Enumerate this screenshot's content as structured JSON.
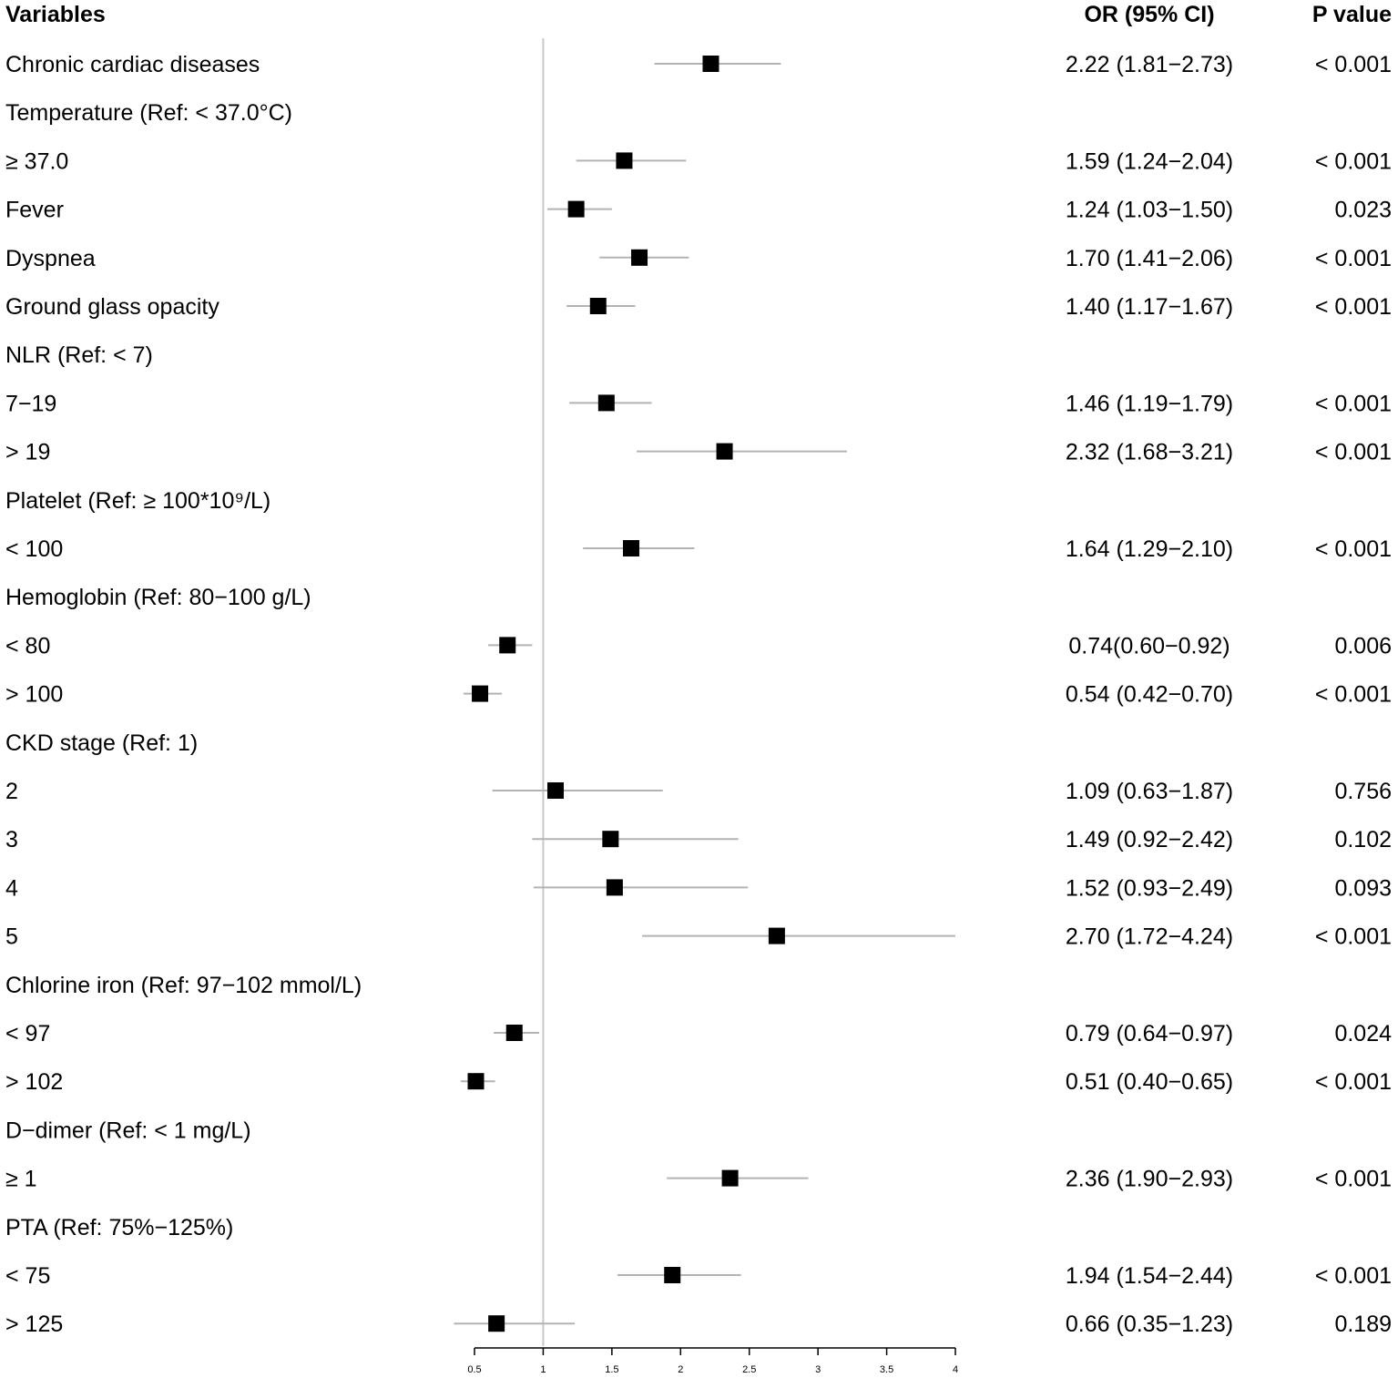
{
  "chart_data": {
    "type": "forest",
    "headers": {
      "variable": "Variables",
      "or": "OR (95% CI)",
      "p": "P value"
    },
    "reference_line": 1,
    "xlim": [
      0.5,
      4
    ],
    "xticks": [
      "0.5",
      "1",
      "1.5",
      "2",
      "2.5",
      "3",
      "3.5",
      "4"
    ],
    "rows": [
      {
        "label": "Chronic cardiac diseases",
        "or": 2.22,
        "lo": 1.81,
        "hi": 2.73,
        "or_text": "2.22 (1.81−2.73)",
        "p": "< 0.001"
      },
      {
        "label": "Temperature (Ref: < 37.0°C)",
        "header": true
      },
      {
        "label": "≥ 37.0",
        "or": 1.59,
        "lo": 1.24,
        "hi": 2.04,
        "or_text": "1.59 (1.24−2.04)",
        "p": "< 0.001"
      },
      {
        "label": "Fever",
        "or": 1.24,
        "lo": 1.03,
        "hi": 1.5,
        "or_text": "1.24 (1.03−1.50)",
        "p": "0.023"
      },
      {
        "label": "Dyspnea",
        "or": 1.7,
        "lo": 1.41,
        "hi": 2.06,
        "or_text": "1.70 (1.41−2.06)",
        "p": "< 0.001"
      },
      {
        "label": "Ground glass opacity",
        "or": 1.4,
        "lo": 1.17,
        "hi": 1.67,
        "or_text": "1.40 (1.17−1.67)",
        "p": "< 0.001"
      },
      {
        "label": "NLR (Ref: < 7)",
        "header": true
      },
      {
        "label": "7−19",
        "or": 1.46,
        "lo": 1.19,
        "hi": 1.79,
        "or_text": "1.46 (1.19−1.79)",
        "p": "< 0.001"
      },
      {
        "label": "> 19",
        "or": 2.32,
        "lo": 1.68,
        "hi": 3.21,
        "or_text": "2.32 (1.68−3.21)",
        "p": "< 0.001"
      },
      {
        "label": "Platelet (Ref:  ≥ 100*10⁹/L)",
        "header": true
      },
      {
        "label": "< 100",
        "or": 1.64,
        "lo": 1.29,
        "hi": 2.1,
        "or_text": "1.64 (1.29−2.10)",
        "p": "< 0.001"
      },
      {
        "label": "Hemoglobin (Ref: 80−100 g/L)",
        "header": true
      },
      {
        "label": "< 80",
        "or": 0.74,
        "lo": 0.6,
        "hi": 0.92,
        "or_text": "0.74(0.60−0.92)",
        "p": "0.006"
      },
      {
        "label": "> 100",
        "or": 0.54,
        "lo": 0.42,
        "hi": 0.7,
        "or_text": "0.54 (0.42−0.70)",
        "p": "< 0.001"
      },
      {
        "label": "CKD stage (Ref: 1)",
        "header": true
      },
      {
        "label": "2",
        "or": 1.09,
        "lo": 0.63,
        "hi": 1.87,
        "or_text": "1.09 (0.63−1.87)",
        "p": "0.756"
      },
      {
        "label": "3",
        "or": 1.49,
        "lo": 0.92,
        "hi": 2.42,
        "or_text": "1.49 (0.92−2.42)",
        "p": "0.102"
      },
      {
        "label": "4",
        "or": 1.52,
        "lo": 0.93,
        "hi": 2.49,
        "or_text": "1.52 (0.93−2.49)",
        "p": "0.093"
      },
      {
        "label": "5",
        "or": 2.7,
        "lo": 1.72,
        "hi": 4.24,
        "or_text": "2.70 (1.72−4.24)",
        "p": "< 0.001"
      },
      {
        "label": "Chlorine iron (Ref: 97−102 mmol/L)",
        "header": true
      },
      {
        "label": "< 97",
        "or": 0.79,
        "lo": 0.64,
        "hi": 0.97,
        "or_text": "0.79 (0.64−0.97)",
        "p": "0.024"
      },
      {
        "label": "> 102",
        "or": 0.51,
        "lo": 0.4,
        "hi": 0.65,
        "or_text": "0.51 (0.40−0.65)",
        "p": "< 0.001"
      },
      {
        "label": "D−dimer (Ref: < 1 mg/L)",
        "header": true
      },
      {
        "label": "≥ 1",
        "or": 2.36,
        "lo": 1.9,
        "hi": 2.93,
        "or_text": "2.36 (1.90−2.93)",
        "p": "< 0.001"
      },
      {
        "label": "PTA (Ref: 75%−125%)",
        "header": true
      },
      {
        "label": "< 75",
        "or": 1.94,
        "lo": 1.54,
        "hi": 2.44,
        "or_text": "1.94  (1.54−2.44)",
        "p": "< 0.001"
      },
      {
        "label": "> 125",
        "or": 0.66,
        "lo": 0.35,
        "hi": 1.23,
        "or_text": "0.66 (0.35−1.23)",
        "p": "0.189"
      }
    ],
    "colors": {
      "marker": "#000000",
      "ci": "#b3b3b3",
      "refline": "#c8c8c8",
      "axis": "#000000"
    }
  }
}
